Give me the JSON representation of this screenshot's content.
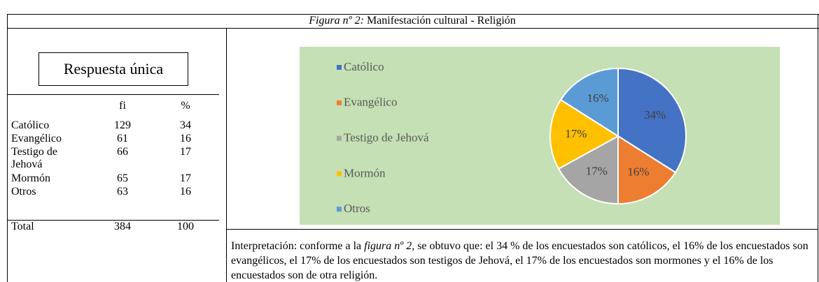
{
  "caption": {
    "label": "Figura nº 2:",
    "text": "Manifestación cultural - Religión"
  },
  "table": {
    "title": "Respuesta única",
    "header": [
      "fi",
      "%"
    ],
    "rows": [
      [
        "Católico",
        129,
        34
      ],
      [
        "Evangélico",
        61,
        16
      ],
      [
        "Testigo de Jehová",
        66,
        17
      ],
      [
        "Mormón",
        65,
        17
      ],
      [
        "Otros",
        63,
        16
      ]
    ],
    "total": [
      "Total",
      384,
      100
    ]
  },
  "chart": {
    "type": "pie",
    "categories": [
      "Católico",
      "Evangélico",
      "Testigo de Jehová",
      "Mormón",
      "Otros"
    ],
    "values": [
      34,
      16,
      17,
      17,
      16
    ],
    "value_labels": [
      "34%",
      "16%",
      "17%",
      "17%",
      "16%"
    ],
    "colors": [
      "#4472c4",
      "#ed7d31",
      "#a5a5a5",
      "#ffc000",
      "#5b9bd5"
    ]
  },
  "interpretation": [
    "Interpretación: conforme a la ",
    "figura nº 2",
    ", se obtuvo que: el 34 % de los encuestados son católicos, el 16% de los encuestados son evangélicos, el 17% de los encuestados son testigos de Jehová, el 17% de los encuestados son mormones y el 16% de los encuestados son de otra religión."
  ]
}
